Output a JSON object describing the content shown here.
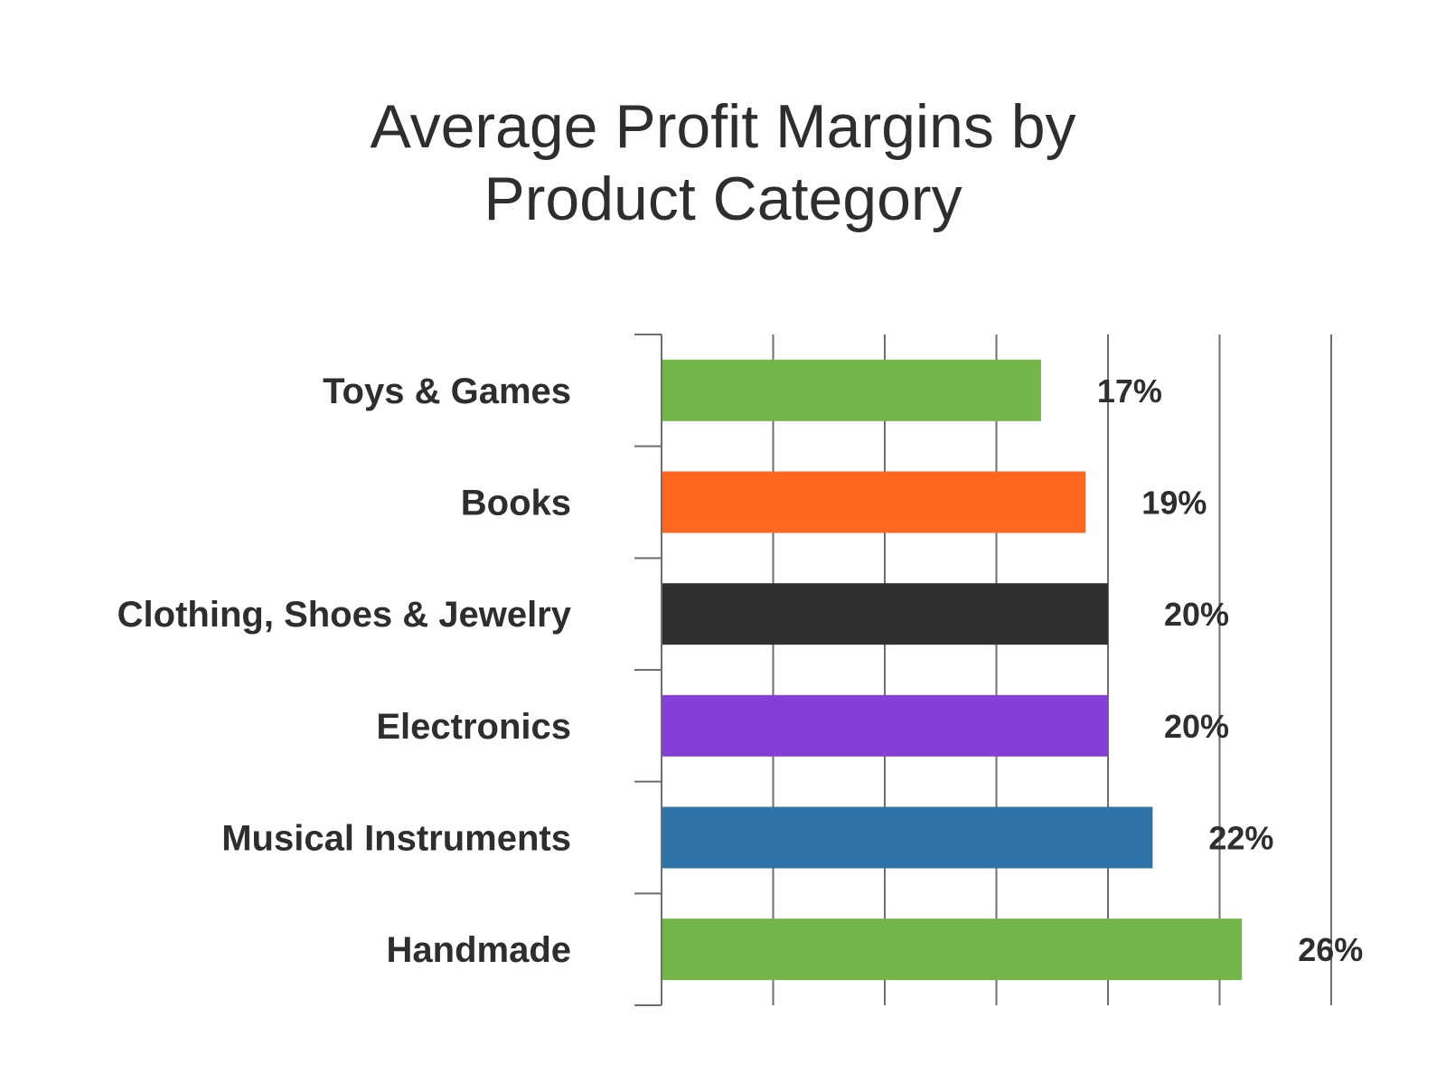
{
  "chart_data": {
    "type": "bar",
    "orientation": "horizontal",
    "title_lines": [
      "Average Profit Margins by",
      "Product Category"
    ],
    "categories": [
      "Toys & Games",
      "Books",
      "Clothing, Shoes & Jewelry",
      "Electronics",
      "Musical Instruments",
      "Handmade"
    ],
    "values": [
      17,
      19,
      20,
      20,
      22,
      26
    ],
    "value_labels": [
      "17%",
      "19%",
      "20%",
      "20%",
      "22%",
      "26%"
    ],
    "colors": [
      "#73b44b",
      "#ff6720",
      "#303030",
      "#853ed6",
      "#2e74a8",
      "#73b44b"
    ],
    "xlim": [
      0,
      30
    ],
    "grid": true,
    "grid_color": "#6e6e6e",
    "legend": "none"
  }
}
